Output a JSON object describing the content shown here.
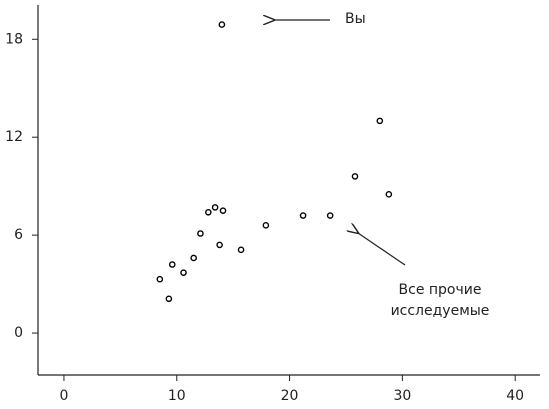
{
  "chart_data": {
    "type": "scatter",
    "x": [
      14.0,
      8.5,
      9.3,
      9.6,
      10.6,
      11.5,
      12.1,
      12.8,
      13.4,
      14.1,
      13.8,
      15.7,
      17.9,
      21.2,
      23.6,
      25.8,
      28.0,
      28.8
    ],
    "values": [
      18.9,
      3.3,
      2.1,
      4.2,
      3.7,
      4.6,
      6.1,
      7.4,
      7.7,
      7.5,
      5.4,
      5.1,
      6.6,
      7.2,
      7.2,
      9.6,
      13.0,
      8.5
    ],
    "color": "#000000",
    "xlim": [
      -2.3,
      42.2
    ],
    "xticks": [
      0,
      10,
      20,
      30,
      40
    ],
    "ylim": [
      -2.57,
      20.1
    ],
    "yticks": [
      0,
      6,
      12,
      18
    ],
    "annotations": [
      "Вы",
      "Все прочие",
      "исследуемые"
    ]
  }
}
